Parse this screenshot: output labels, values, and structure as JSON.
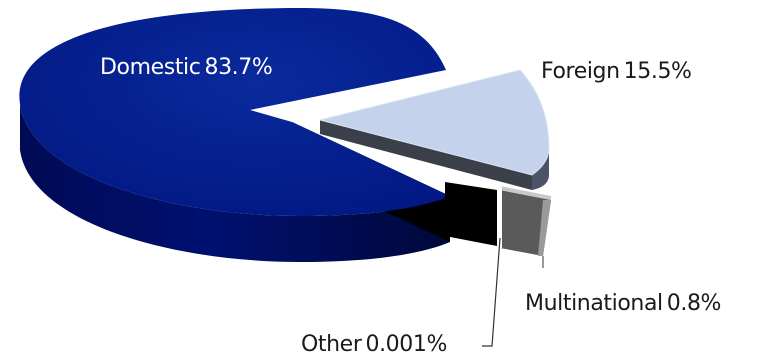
{
  "chart_data": {
    "type": "pie",
    "style": "3d-exploded",
    "slices": [
      {
        "label": "Domestic",
        "value": 83.7,
        "value_label": "83.7%",
        "color": "#001a8c"
      },
      {
        "label": "Foreign",
        "value": 15.5,
        "value_label": "15.5%",
        "color": "#c4d3eb"
      },
      {
        "label": "Multinational",
        "value": 0.8,
        "value_label": "0.8%",
        "color": "#505050"
      },
      {
        "label": "Other",
        "value": 0.001,
        "value_label": "0.001%",
        "color": "#000000"
      }
    ],
    "title": "",
    "legend": "none"
  }
}
